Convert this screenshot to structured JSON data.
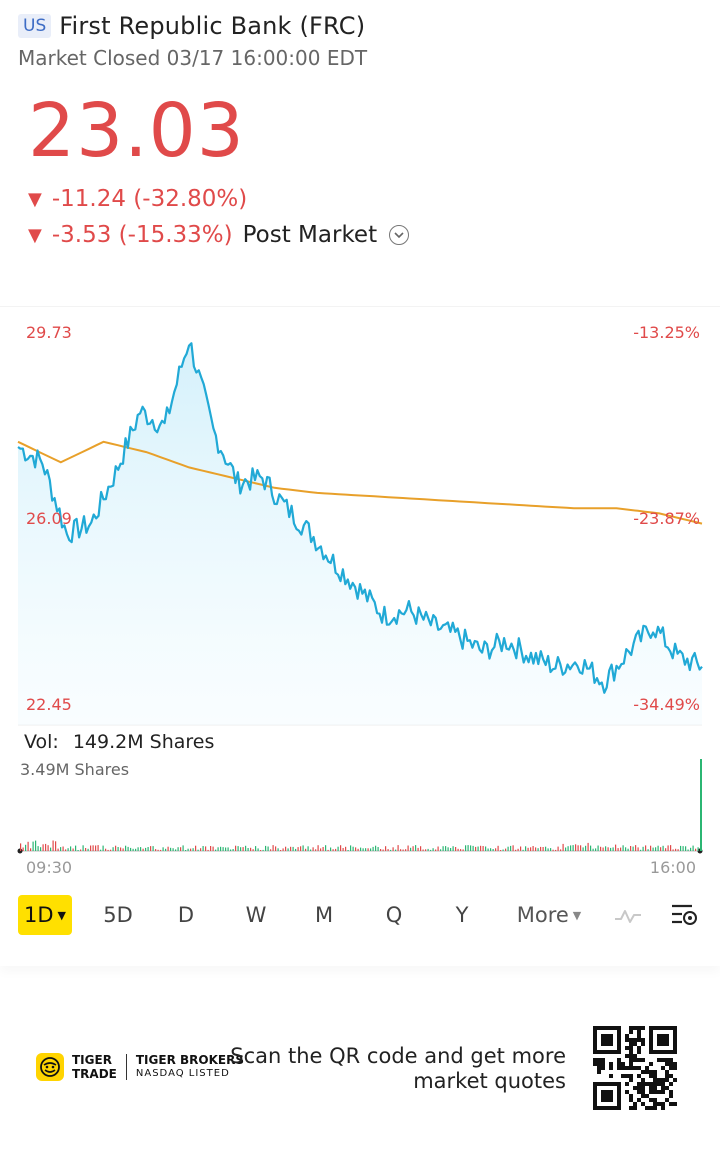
{
  "header": {
    "market": "US",
    "title": "First Republic Bank (FRC)",
    "status": "Market Closed 03/17 16:00:00 EDT"
  },
  "quote": {
    "price": "23.03",
    "change": "-11.24 (-32.80%)",
    "post_market_change": "-3.53 (-15.33%)",
    "post_market_label": "Post Market",
    "down_symbol": "▼",
    "color_down": "#e04a4a"
  },
  "chart": {
    "price_high": "29.73",
    "price_mid": "26.09",
    "price_low": "22.45",
    "pct_high": "-13.25%",
    "pct_mid": "-23.87%",
    "pct_low": "-34.49%",
    "volume_label": "Vol:",
    "volume_value": "149.2M Shares",
    "volume_max": "3.49M Shares",
    "time_start": "09:30",
    "time_end": "16:00",
    "price_line_color": "#21a9d6",
    "avg_line_color": "#e8a02a"
  },
  "chart_data": {
    "type": "line",
    "title": "",
    "xlabel": "",
    "ylabel": "",
    "x_range": [
      "09:30",
      "16:00"
    ],
    "ylim": [
      22.45,
      29.73
    ],
    "ylim_pct": [
      -34.49,
      -13.25
    ],
    "series": [
      {
        "values": [
          27.5,
          27.2,
          25.8,
          26.0,
          27.0,
          28.2,
          27.9,
          29.6,
          27.8,
          26.8,
          26.9,
          26.3,
          25.8,
          25.2,
          24.7,
          24.2,
          24.3,
          24.0,
          23.8,
          23.5,
          23.7,
          23.4,
          23.2,
          23.3,
          22.9,
          23.5,
          24.0,
          23.4,
          23.2
        ],
        "color": "#21a9d6"
      },
      {
        "values": [
          27.6,
          27.2,
          27.6,
          27.4,
          27.1,
          26.9,
          26.7,
          26.6,
          26.55,
          26.5,
          26.45,
          26.4,
          26.35,
          26.3,
          26.3,
          26.2,
          26.0
        ],
        "color": "#e8a02a"
      }
    ],
    "volume_max": "3.49M Shares",
    "volume_total": "149.2M Shares"
  },
  "periods": {
    "items": [
      "1D",
      "5D",
      "D",
      "W",
      "M",
      "Q",
      "Y"
    ],
    "active": "1D",
    "more_label": "More"
  },
  "footer": {
    "brand_line1": "TIGER",
    "brand_line2": "TRADE",
    "brand_sub1": "TIGER BROKERS",
    "brand_sub2": "NASDAQ LISTED",
    "scan_line1": "Scan the QR code and get more",
    "scan_line2": "market quotes"
  }
}
